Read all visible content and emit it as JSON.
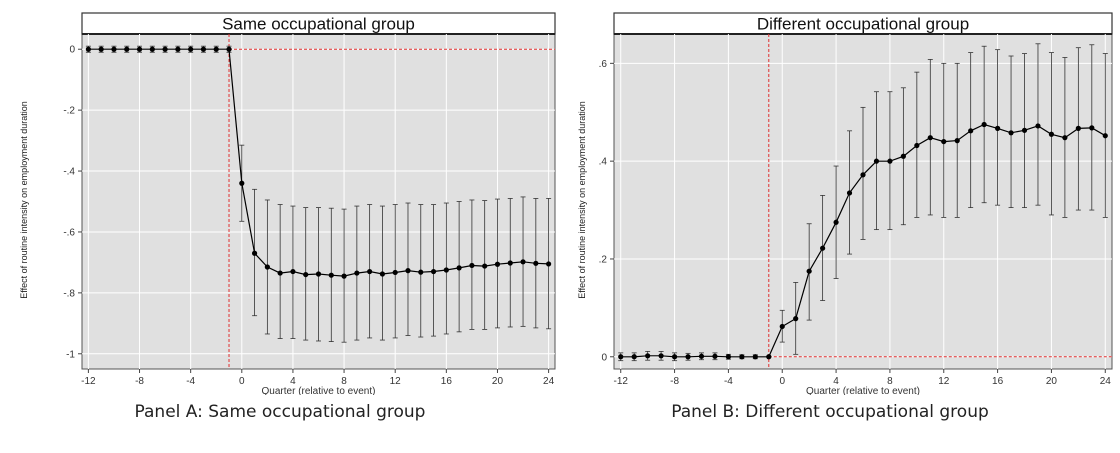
{
  "chart_data": [
    {
      "type": "line",
      "title": "Same occupational group",
      "xlabel": "Quarter (relative to event)",
      "ylabel": "Effect of routine intensity on employment duration",
      "caption": "Panel A: Same occupational group",
      "xlim": [
        -12.5,
        24.5
      ],
      "ylim": [
        -1.05,
        0.05
      ],
      "xticks": [
        -12,
        -8,
        -4,
        0,
        4,
        8,
        12,
        16,
        20,
        24
      ],
      "xtick_labels": [
        "-12",
        "-8",
        "-4",
        "0",
        "4",
        "8",
        "12",
        "16",
        "20",
        "24"
      ],
      "yticks": [
        0,
        -0.2,
        -0.4,
        -0.6,
        -0.8,
        -1
      ],
      "ytick_labels": [
        "0",
        "-.2",
        "-.4",
        "-.6",
        "-.8",
        "-1"
      ],
      "reference_lines": {
        "x": -1,
        "y": 0,
        "color": "#e03030",
        "style": "dashed"
      },
      "grid": true,
      "background": "#e0e0e0",
      "line_color": "#000000",
      "x": [
        -12,
        -11,
        -10,
        -9,
        -8,
        -7,
        -6,
        -5,
        -4,
        -3,
        -2,
        -1,
        0,
        1,
        2,
        3,
        4,
        5,
        6,
        7,
        8,
        9,
        10,
        11,
        12,
        13,
        14,
        15,
        16,
        17,
        18,
        19,
        20,
        21,
        22,
        23,
        24
      ],
      "y": [
        0,
        0,
        0,
        0,
        0,
        0,
        0,
        0,
        0,
        0,
        0,
        0,
        -0.44,
        -0.67,
        -0.715,
        -0.735,
        -0.73,
        -0.74,
        -0.738,
        -0.742,
        -0.745,
        -0.735,
        -0.73,
        -0.738,
        -0.733,
        -0.727,
        -0.732,
        -0.73,
        -0.725,
        -0.718,
        -0.71,
        -0.712,
        -0.706,
        -0.702,
        -0.698,
        -0.703,
        -0.705
      ],
      "ci_lower": [
        -0.01,
        -0.01,
        -0.01,
        -0.01,
        -0.01,
        -0.01,
        -0.01,
        -0.01,
        -0.01,
        -0.01,
        -0.01,
        -0.01,
        -0.565,
        -0.875,
        -0.935,
        -0.95,
        -0.95,
        -0.955,
        -0.958,
        -0.96,
        -0.962,
        -0.955,
        -0.948,
        -0.955,
        -0.948,
        -0.94,
        -0.945,
        -0.942,
        -0.935,
        -0.928,
        -0.92,
        -0.92,
        -0.915,
        -0.912,
        -0.91,
        -0.915,
        -0.918
      ],
      "ci_upper": [
        0.01,
        0.01,
        0.01,
        0.01,
        0.01,
        0.01,
        0.01,
        0.01,
        0.01,
        0.01,
        0.01,
        0.01,
        -0.315,
        -0.46,
        -0.495,
        -0.51,
        -0.515,
        -0.52,
        -0.52,
        -0.522,
        -0.525,
        -0.515,
        -0.51,
        -0.515,
        -0.51,
        -0.505,
        -0.51,
        -0.51,
        -0.505,
        -0.5,
        -0.495,
        -0.497,
        -0.492,
        -0.49,
        -0.485,
        -0.49,
        -0.49
      ]
    },
    {
      "type": "line",
      "title": "Different occupational group",
      "xlabel": "Quarter (relative to event)",
      "ylabel": "Effect of routine intensity on employment duration",
      "caption": "Panel B: Different  occupational group",
      "xlim": [
        -12.5,
        24.5
      ],
      "ylim": [
        -0.025,
        0.66
      ],
      "xticks": [
        -12,
        -8,
        -4,
        0,
        4,
        8,
        12,
        16,
        20,
        24
      ],
      "xtick_labels": [
        "-12",
        "-8",
        "-4",
        "0",
        "4",
        "8",
        "12",
        "16",
        "20",
        "24"
      ],
      "yticks": [
        0,
        0.2,
        0.4,
        0.6
      ],
      "ytick_labels": [
        "0",
        ".2",
        ".4",
        ".6"
      ],
      "reference_lines": {
        "x": -1,
        "y": 0,
        "color": "#e03030",
        "style": "dashed"
      },
      "grid": true,
      "background": "#e0e0e0",
      "line_color": "#000000",
      "x": [
        -12,
        -11,
        -10,
        -9,
        -8,
        -7,
        -6,
        -5,
        -4,
        -3,
        -2,
        -1,
        0,
        1,
        2,
        3,
        4,
        5,
        6,
        7,
        8,
        9,
        10,
        11,
        12,
        13,
        14,
        15,
        16,
        17,
        18,
        19,
        20,
        21,
        22,
        23,
        24
      ],
      "y": [
        0,
        0,
        0.002,
        0.002,
        0,
        0,
        0.001,
        0.001,
        0,
        0,
        0,
        0,
        0.062,
        0.078,
        0.175,
        0.222,
        0.275,
        0.335,
        0.372,
        0.4,
        0.4,
        0.41,
        0.432,
        0.448,
        0.44,
        0.442,
        0.462,
        0.475,
        0.467,
        0.458,
        0.463,
        0.472,
        0.455,
        0.448,
        0.467,
        0.468,
        0.452
      ],
      "ci_lower": [
        -0.008,
        -0.008,
        -0.007,
        -0.007,
        -0.008,
        -0.007,
        -0.006,
        -0.006,
        -0.005,
        -0.004,
        -0.004,
        0,
        0.03,
        0.005,
        0.075,
        0.115,
        0.16,
        0.21,
        0.24,
        0.26,
        0.26,
        0.27,
        0.285,
        0.29,
        0.285,
        0.285,
        0.305,
        0.315,
        0.31,
        0.305,
        0.305,
        0.31,
        0.29,
        0.285,
        0.3,
        0.3,
        0.285
      ],
      "ci_upper": [
        0.008,
        0.008,
        0.011,
        0.011,
        0.008,
        0.007,
        0.008,
        0.008,
        0.005,
        0.004,
        0.004,
        0,
        0.095,
        0.152,
        0.272,
        0.33,
        0.39,
        0.462,
        0.51,
        0.542,
        0.542,
        0.55,
        0.582,
        0.608,
        0.6,
        0.6,
        0.622,
        0.635,
        0.628,
        0.615,
        0.62,
        0.64,
        0.622,
        0.612,
        0.632,
        0.638,
        0.62
      ]
    }
  ]
}
